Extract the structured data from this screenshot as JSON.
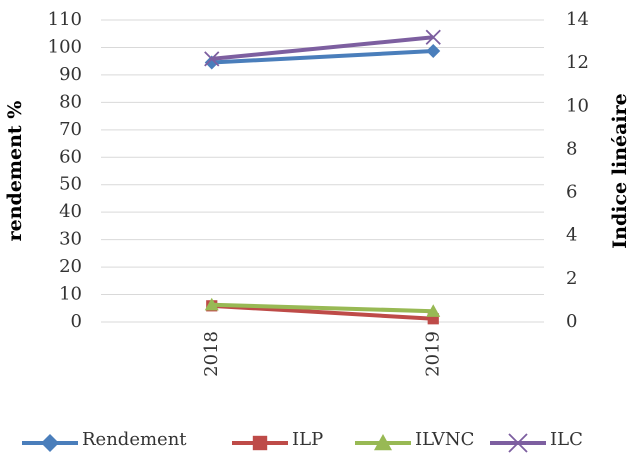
{
  "chart_data": {
    "type": "line",
    "categories": [
      "2018",
      "2019"
    ],
    "ylabel": "rendement %",
    "y2label": "Indice linéaire",
    "ylim": [
      0,
      110
    ],
    "yticks": [
      0,
      10,
      20,
      30,
      40,
      50,
      60,
      70,
      80,
      90,
      100,
      110
    ],
    "y2lim": [
      0,
      14
    ],
    "y2ticks": [
      0,
      2,
      4,
      6,
      8,
      10,
      12,
      14
    ],
    "grid": true,
    "legend": "bottom",
    "series": [
      {
        "name": "Rendement",
        "color": "#4a7ebb",
        "marker": "diamond",
        "values": [
          94.5,
          98.7
        ]
      },
      {
        "name": "ILP",
        "color": "#be4b48",
        "marker": "square",
        "axis": "y2",
        "values": [
          0.75,
          0.15
        ]
      },
      {
        "name": "ILVNC",
        "color": "#98b954",
        "marker": "triangle",
        "axis": "y2",
        "values": [
          0.8,
          0.5
        ]
      },
      {
        "name": "ILC",
        "color": "#7d5fa0",
        "marker": "x",
        "axis": "y2",
        "values": [
          12.2,
          13.2
        ]
      }
    ]
  }
}
